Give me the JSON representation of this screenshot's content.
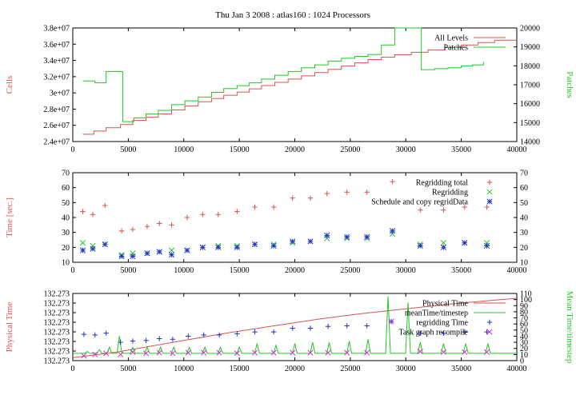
{
  "title": "Thu Jan 3 2008 : atlas160 : 1024 Processors",
  "colors": {
    "red": "#d9534f",
    "green": "#22c722",
    "blue": "#2233cc",
    "magenta": "#cc33cc"
  },
  "chart_data": [
    {
      "type": "line",
      "ylabel": "Cells",
      "y2label": "Patches",
      "xlim": [
        0,
        40000
      ],
      "ylim": [
        24000000,
        38000000
      ],
      "y2lim": [
        14000,
        20000
      ],
      "xticks": [
        "0",
        "5000",
        "10000",
        "15000",
        "20000",
        "25000",
        "30000",
        "35000",
        "40000"
      ],
      "yticks": [
        "2.4e+07",
        "2.6e+07",
        "2.8e+07",
        "3e+07",
        "3.2e+07",
        "3.4e+07",
        "3.6e+07",
        "3.8e+07"
      ],
      "y2ticks": [
        "14000",
        "15000",
        "16000",
        "17000",
        "18000",
        "19000",
        "20000"
      ],
      "legend_position": "top-right",
      "series": [
        {
          "name": "All Levels",
          "axis": "y",
          "color": "red",
          "style": "step",
          "x": [
            900,
            1900,
            3000,
            4300,
            5400,
            6600,
            7700,
            8900,
            10100,
            11300,
            12500,
            13600,
            14800,
            15900,
            17000,
            18200,
            19400,
            20600,
            21800,
            23000,
            24200,
            25400,
            26600,
            27800,
            29000,
            30500,
            32000,
            33500,
            35000,
            36500,
            38000,
            40000
          ],
          "y": [
            24900000,
            25300000,
            25700000,
            26100000,
            26600000,
            27000000,
            27400000,
            27900000,
            28400000,
            28900000,
            29300000,
            29700000,
            30100000,
            30500000,
            30900000,
            31300000,
            31700000,
            32100000,
            32500000,
            32900000,
            33300000,
            33700000,
            34100000,
            34400000,
            34700000,
            35000000,
            35300000,
            35600000,
            35900000,
            36200000,
            36500000,
            36500000
          ]
        },
        {
          "name": "Patches",
          "axis": "y2",
          "color": "green",
          "style": "step",
          "x": [
            900,
            2000,
            3000,
            4400,
            4500,
            5500,
            6600,
            7700,
            8900,
            10100,
            11300,
            12500,
            13600,
            14800,
            15900,
            17000,
            18200,
            19400,
            20600,
            21800,
            23000,
            24200,
            25400,
            26600,
            27800,
            29000,
            31400,
            32600,
            33800,
            35000,
            36000,
            37000
          ],
          "y": [
            17200,
            17100,
            17700,
            17700,
            15050,
            15250,
            15450,
            15650,
            15950,
            16150,
            16350,
            16600,
            16800,
            16950,
            17100,
            17300,
            17500,
            17700,
            17900,
            18050,
            18250,
            18400,
            18500,
            18600,
            19100,
            20000,
            17800,
            17850,
            17900,
            18000,
            18050,
            18200
          ]
        }
      ]
    },
    {
      "type": "scatter",
      "ylabel": "Time [sec.]",
      "xlim": [
        0,
        40000
      ],
      "ylim": [
        10,
        70
      ],
      "y2lim": [
        10,
        70
      ],
      "xticks": [
        "0",
        "5000",
        "10000",
        "15000",
        "20000",
        "25000",
        "30000",
        "35000",
        "40000"
      ],
      "yticks": [
        "10",
        "20",
        "30",
        "40",
        "50",
        "60",
        "70"
      ],
      "y2ticks": [
        "10",
        "20",
        "30",
        "40",
        "50",
        "60",
        "70"
      ],
      "legend_position": "top-right",
      "series": [
        {
          "name": "Regridding total",
          "color": "red",
          "marker": "plus",
          "x": [
            900,
            1800,
            2900,
            4400,
            5400,
            6700,
            7800,
            8900,
            10300,
            11700,
            13100,
            14800,
            16400,
            18100,
            19800,
            21400,
            22900,
            24700,
            26500,
            28800,
            31300,
            33400,
            35300,
            37300
          ],
          "y": [
            44,
            42,
            48,
            31,
            32,
            34,
            36,
            35,
            40,
            42,
            42,
            44,
            47,
            47,
            53,
            53,
            56,
            57,
            57,
            64,
            45,
            45,
            47,
            47
          ]
        },
        {
          "name": "Regridding",
          "color": "green",
          "marker": "x",
          "x": [
            900,
            1800,
            2900,
            4400,
            5400,
            6700,
            7800,
            8900,
            10300,
            11700,
            13100,
            14800,
            16400,
            18100,
            19800,
            21400,
            22900,
            24700,
            26500,
            28800,
            31300,
            33400,
            35300,
            37300
          ],
          "y": [
            23,
            21,
            22,
            15,
            16,
            16,
            17,
            18,
            18,
            20,
            21,
            21,
            22,
            22,
            23,
            24,
            26,
            26,
            26,
            29,
            22,
            23,
            23,
            23
          ]
        },
        {
          "name": "Schedule and copy regridData",
          "color": "blue",
          "marker": "star",
          "x": [
            900,
            1800,
            2900,
            4400,
            5400,
            6700,
            7800,
            8900,
            10300,
            11700,
            13100,
            14800,
            16400,
            18100,
            19800,
            21400,
            22900,
            24700,
            26500,
            28800,
            31300,
            33400,
            35300,
            37300
          ],
          "y": [
            18,
            19,
            22,
            14,
            14,
            16,
            17,
            15,
            18,
            20,
            20,
            20,
            22,
            21,
            24,
            24,
            28,
            27,
            27,
            31,
            21,
            20,
            23,
            21
          ]
        }
      ]
    },
    {
      "type": "line",
      "ylabel": "Physical Time",
      "y2label": "Mean Time/timestep",
      "xlim": [
        0,
        40000
      ],
      "ylim": [
        0,
        7
      ],
      "y2lim": [
        0,
        110
      ],
      "xticks": [
        "0",
        "5000",
        "10000",
        "15000",
        "20000",
        "25000",
        "30000",
        "35000",
        "40000"
      ],
      "yticks": [
        "132.273",
        "132.273",
        "132.273",
        "132.273",
        "132.273",
        "132.273",
        "132.273",
        "132.273"
      ],
      "y2ticks": [
        "0",
        "10",
        "20",
        "30",
        "40",
        "50",
        "60",
        "70",
        "80",
        "90",
        "100",
        "110"
      ],
      "legend_position": "top-right",
      "series": [
        {
          "name": "Physical Time",
          "axis": "y",
          "color": "red",
          "style": "curve",
          "x": [
            0,
            2000,
            4000,
            6000,
            8000,
            10000,
            12000,
            14000,
            16000,
            18000,
            20000,
            22000,
            24000,
            26000,
            28000,
            30000,
            32000,
            34000,
            36000,
            38000,
            40000
          ],
          "y": [
            0.3,
            0.6,
            0.9,
            1.3,
            1.7,
            2.1,
            2.5,
            2.9,
            3.25,
            3.6,
            3.95,
            4.3,
            4.6,
            4.9,
            5.15,
            5.4,
            5.65,
            5.9,
            6.1,
            6.3,
            6.5
          ]
        },
        {
          "name": "meanTime/timestep",
          "axis": "y2",
          "color": "green",
          "style": "spiky",
          "baseline": 12,
          "x": [
            1300,
            2400,
            3300,
            4200,
            5400,
            6700,
            7900,
            9100,
            10500,
            11900,
            13300,
            15000,
            16600,
            18300,
            20000,
            21600,
            23100,
            24900,
            26600,
            28400,
            30200,
            31300,
            33400,
            35400,
            37400
          ],
          "y": [
            15,
            18,
            22,
            40,
            22,
            22,
            22,
            22,
            22,
            22,
            22,
            22,
            28,
            25,
            28,
            30,
            30,
            32,
            35,
            105,
            95,
            30,
            28,
            28,
            28
          ]
        },
        {
          "name": "regridding Time",
          "axis": "y2",
          "color": "blue",
          "marker": "plus",
          "x": [
            1000,
            2000,
            3000,
            4300,
            5400,
            6600,
            7800,
            9000,
            10400,
            11800,
            13200,
            14800,
            16400,
            18100,
            19800,
            21400,
            23000,
            24700,
            26500,
            28700,
            31300,
            33400,
            35300,
            37300
          ],
          "y": [
            43,
            42,
            45,
            30,
            32,
            33,
            36,
            35,
            40,
            42,
            42,
            44,
            47,
            47,
            53,
            53,
            56,
            57,
            57,
            64,
            45,
            45,
            47,
            47
          ]
        },
        {
          "name": "Task graph recompile",
          "axis": "y2",
          "color": "magenta",
          "marker": "x",
          "x": [
            1000,
            2000,
            3000,
            4300,
            5400,
            6600,
            7800,
            9000,
            10400,
            11800,
            13200,
            14800,
            16400,
            18100,
            19800,
            21400,
            23000,
            24700,
            26500,
            28700,
            31300,
            33400,
            35300,
            37300
          ],
          "y": [
            8,
            10,
            12,
            10,
            14,
            12,
            13,
            12,
            13,
            13,
            13,
            12,
            13,
            13,
            13,
            13,
            13,
            13,
            13,
            64,
            15,
            14,
            14,
            14
          ]
        }
      ]
    }
  ]
}
